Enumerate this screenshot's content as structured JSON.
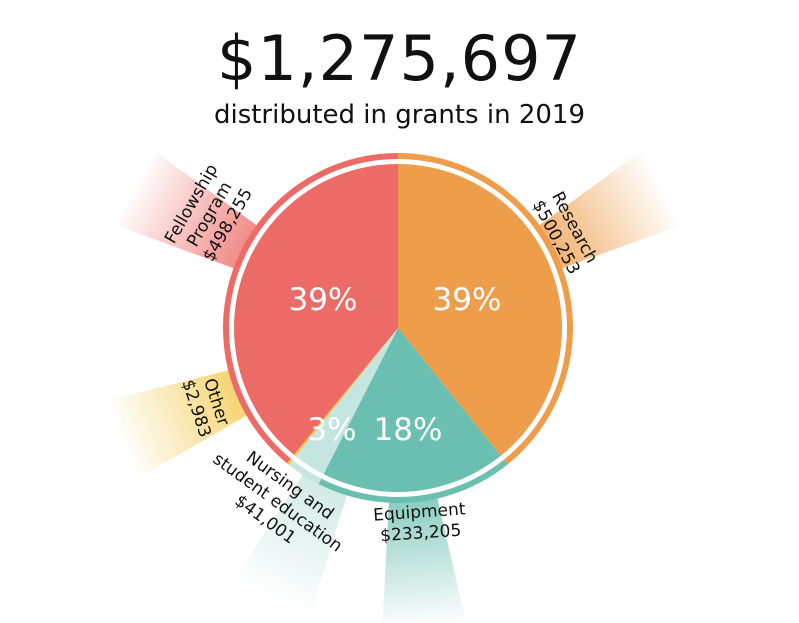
{
  "chart_data": {
    "type": "pie",
    "title": "$1,275,697",
    "subtitle": "distributed in grants in 2019",
    "start": "top",
    "direction": "clockwise",
    "slices": [
      {
        "name": "Research",
        "value": 500253,
        "amount": "$500,253",
        "percent_label": "39%",
        "color": "#EE9D4A",
        "label_lines": [
          "Research",
          "$500,253"
        ]
      },
      {
        "name": "Equipment",
        "value": 233205,
        "amount": "$233,205",
        "percent_label": "18%",
        "color": "#6BBFB0",
        "label_lines": [
          "Equipment",
          "$233,205"
        ]
      },
      {
        "name": "Nursing and student education",
        "value": 41001,
        "amount": "$41,001",
        "percent_label": "3%",
        "color": "#C5E5E0",
        "label_lines": [
          "Nursing and",
          "student education",
          "$41,001"
        ]
      },
      {
        "name": "Other",
        "value": 2983,
        "amount": "$2,983",
        "percent_label": "",
        "color": "#F3C94B",
        "label_lines": [
          "Other",
          "$2,983"
        ]
      },
      {
        "name": "Fellowship Program",
        "value": 498255,
        "amount": "$498,255",
        "percent_label": "39%",
        "color": "#EC6B66",
        "label_lines": [
          "Fellowship",
          "Program",
          "$498,255"
        ]
      }
    ]
  }
}
